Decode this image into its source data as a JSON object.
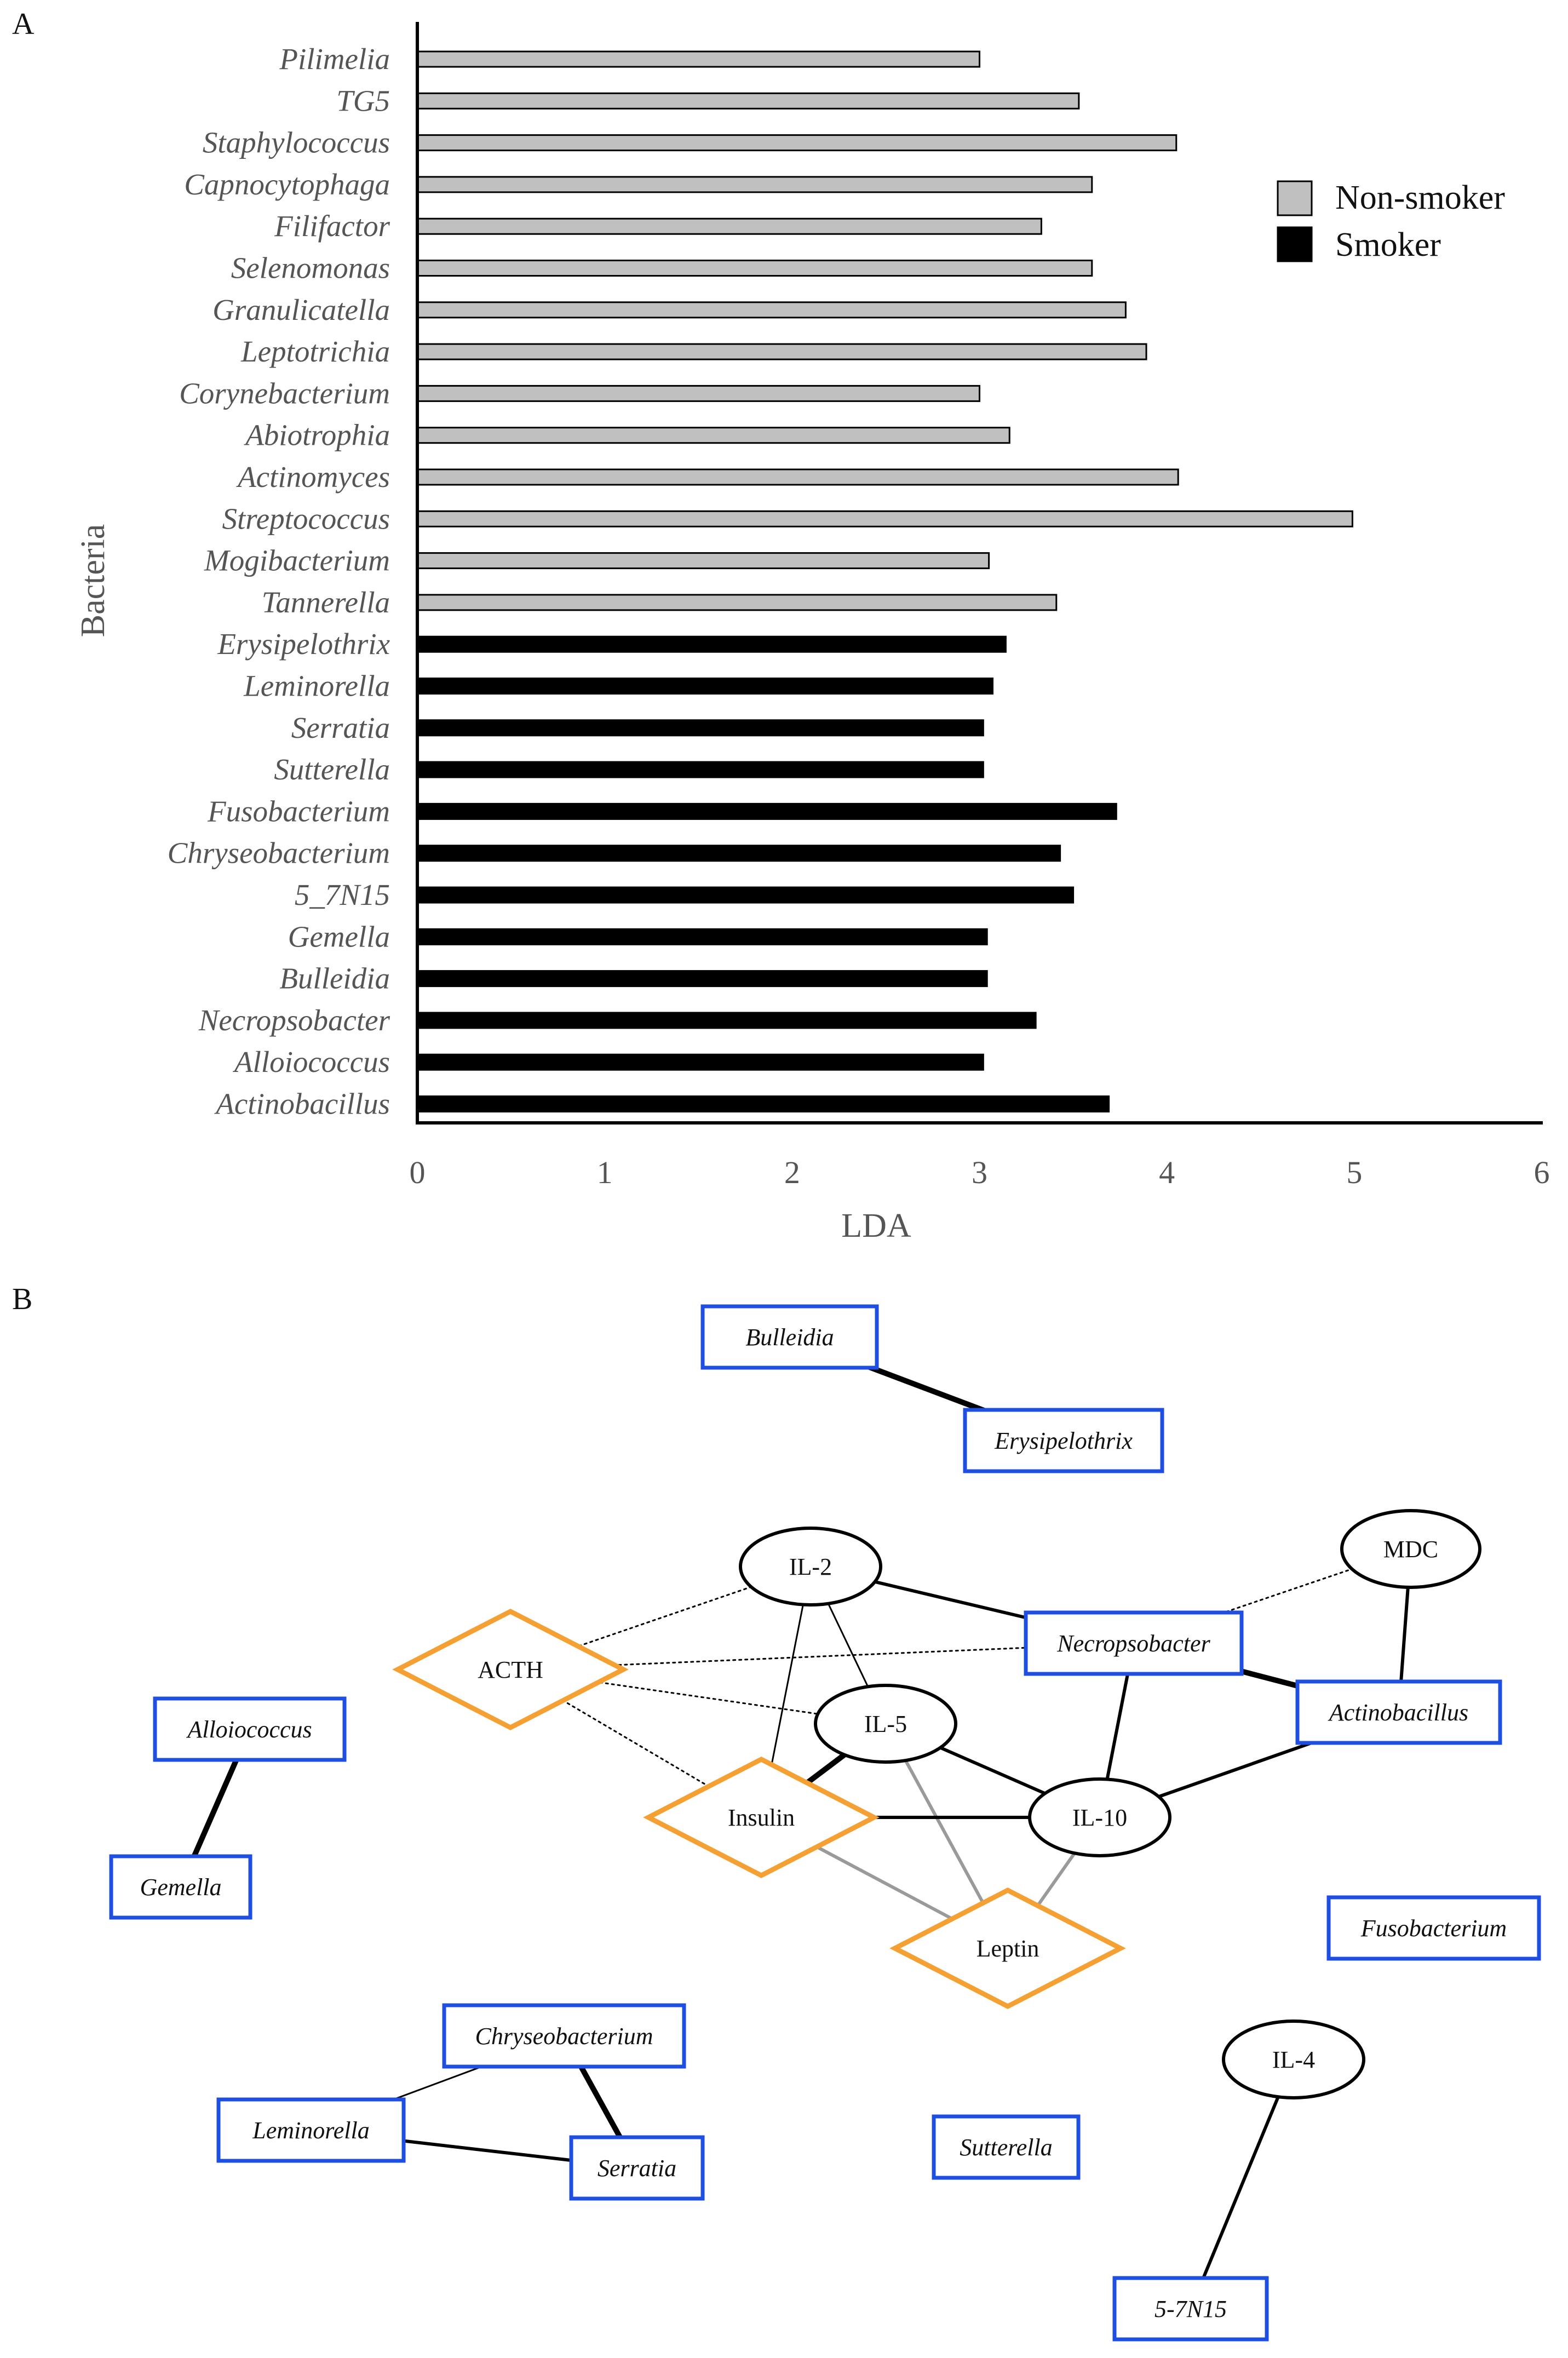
{
  "panel_a_label": "A",
  "panel_b_label": "B",
  "chart_data": [
    {
      "type": "bar",
      "orientation": "horizontal",
      "title": "",
      "xlabel": "LDA",
      "ylabel": "Bacteria",
      "xlim": [
        0,
        6
      ],
      "xticks": [
        "0",
        "1",
        "2",
        "3",
        "4",
        "5",
        "6"
      ],
      "legend": {
        "position": "top-right",
        "entries": [
          {
            "label": "Non-smoker",
            "color": "#c0c0c0"
          },
          {
            "label": "Smoker",
            "color": "#000000"
          }
        ]
      },
      "bars": [
        {
          "category": "Pilimelia",
          "value": 3.0,
          "group": "Non-smoker"
        },
        {
          "category": "TG5",
          "value": 3.53,
          "group": "Non-smoker"
        },
        {
          "category": "Staphylococcus",
          "value": 4.05,
          "group": "Non-smoker"
        },
        {
          "category": "Capnocytophaga",
          "value": 3.6,
          "group": "Non-smoker"
        },
        {
          "category": "Filifactor",
          "value": 3.33,
          "group": "Non-smoker"
        },
        {
          "category": "Selenomonas",
          "value": 3.6,
          "group": "Non-smoker"
        },
        {
          "category": "Granulicatella",
          "value": 3.78,
          "group": "Non-smoker"
        },
        {
          "category": "Leptotrichia",
          "value": 3.89,
          "group": "Non-smoker"
        },
        {
          "category": "Corynebacterium",
          "value": 3.0,
          "group": "Non-smoker"
        },
        {
          "category": "Abiotrophia",
          "value": 3.16,
          "group": "Non-smoker"
        },
        {
          "category": "Actinomyces",
          "value": 4.06,
          "group": "Non-smoker"
        },
        {
          "category": "Streptococcus",
          "value": 4.99,
          "group": "Non-smoker"
        },
        {
          "category": "Mogibacterium",
          "value": 3.05,
          "group": "Non-smoker"
        },
        {
          "category": "Tannerella",
          "value": 3.41,
          "group": "Non-smoker"
        },
        {
          "category": "Erysipelothrix",
          "value": 3.14,
          "group": "Smoker"
        },
        {
          "category": "Leminorella",
          "value": 3.07,
          "group": "Smoker"
        },
        {
          "category": "Serratia",
          "value": 3.02,
          "group": "Smoker"
        },
        {
          "category": "Sutterella",
          "value": 3.02,
          "group": "Smoker"
        },
        {
          "category": "Fusobacterium",
          "value": 3.73,
          "group": "Smoker"
        },
        {
          "category": "Chryseobacterium",
          "value": 3.43,
          "group": "Smoker"
        },
        {
          "category": "5_7N15",
          "value": 3.5,
          "group": "Smoker"
        },
        {
          "category": "Gemella",
          "value": 3.04,
          "group": "Smoker"
        },
        {
          "category": "Bulleidia",
          "value": 3.04,
          "group": "Smoker"
        },
        {
          "category": "Necropsobacter",
          "value": 3.3,
          "group": "Smoker"
        },
        {
          "category": "Alloiococcus",
          "value": 3.02,
          "group": "Smoker"
        },
        {
          "category": "Actinobacillus",
          "value": 3.69,
          "group": "Smoker"
        }
      ]
    },
    {
      "type": "network",
      "node_colors": {
        "bacteria": "#1f4fe0",
        "hormone": "#f5a033",
        "cytokine": "#000000"
      },
      "nodes": [
        {
          "id": "Bulleidia",
          "label": "Bulleidia",
          "kind": "bacteria"
        },
        {
          "id": "Erysipelothrix",
          "label": "Erysipelothrix",
          "kind": "bacteria"
        },
        {
          "id": "IL-2",
          "label": "IL-2",
          "kind": "cytokine"
        },
        {
          "id": "MDC",
          "label": "MDC",
          "kind": "cytokine"
        },
        {
          "id": "ACTH",
          "label": "ACTH",
          "kind": "hormone"
        },
        {
          "id": "Necropsobacter",
          "label": "Necropsobacter",
          "kind": "bacteria"
        },
        {
          "id": "Actinobacillus",
          "label": "Actinobacillus",
          "kind": "bacteria"
        },
        {
          "id": "Alloiococcus",
          "label": "Alloiococcus",
          "kind": "bacteria"
        },
        {
          "id": "IL-5",
          "label": "IL-5",
          "kind": "cytokine"
        },
        {
          "id": "Insulin",
          "label": "Insulin",
          "kind": "hormone"
        },
        {
          "id": "IL-10",
          "label": "IL-10",
          "kind": "cytokine"
        },
        {
          "id": "Gemella",
          "label": "Gemella",
          "kind": "bacteria"
        },
        {
          "id": "Leptin",
          "label": "Leptin",
          "kind": "hormone"
        },
        {
          "id": "Fusobacterium",
          "label": "Fusobacterium",
          "kind": "bacteria"
        },
        {
          "id": "Chryseobacterium",
          "label": "Chryseobacterium",
          "kind": "bacteria"
        },
        {
          "id": "IL-4",
          "label": "IL-4",
          "kind": "cytokine"
        },
        {
          "id": "Leminorella",
          "label": "Leminorella",
          "kind": "bacteria"
        },
        {
          "id": "Sutterella",
          "label": "Sutterella",
          "kind": "bacteria"
        },
        {
          "id": "Serratia",
          "label": "Serratia",
          "kind": "bacteria"
        },
        {
          "id": "5-7N15",
          "label": "5-7N15",
          "kind": "bacteria"
        }
      ],
      "edges": [
        {
          "source": "Bulleidia",
          "target": "Erysipelothrix",
          "style": "thick"
        },
        {
          "source": "ACTH",
          "target": "IL-2",
          "style": "dotted"
        },
        {
          "source": "ACTH",
          "target": "Necropsobacter",
          "style": "dotted"
        },
        {
          "source": "ACTH",
          "target": "IL-5",
          "style": "dotted"
        },
        {
          "source": "ACTH",
          "target": "Insulin",
          "style": "dotted"
        },
        {
          "source": "MDC",
          "target": "Necropsobacter",
          "style": "dotted"
        },
        {
          "source": "IL-2",
          "target": "Necropsobacter",
          "style": "solid"
        },
        {
          "source": "IL-2",
          "target": "IL-5",
          "style": "thin"
        },
        {
          "source": "IL-2",
          "target": "Insulin",
          "style": "thin"
        },
        {
          "source": "MDC",
          "target": "Actinobacillus",
          "style": "solid"
        },
        {
          "source": "Necropsobacter",
          "target": "Actinobacillus",
          "style": "thick"
        },
        {
          "source": "Necropsobacter",
          "target": "IL-10",
          "style": "solid"
        },
        {
          "source": "IL-5",
          "target": "IL-10",
          "style": "solid"
        },
        {
          "source": "IL-5",
          "target": "Insulin",
          "style": "thick"
        },
        {
          "source": "IL-5",
          "target": "Leptin",
          "style": "gray"
        },
        {
          "source": "Insulin",
          "target": "IL-10",
          "style": "solid"
        },
        {
          "source": "Insulin",
          "target": "Leptin",
          "style": "gray"
        },
        {
          "source": "IL-10",
          "target": "Leptin",
          "style": "gray"
        },
        {
          "source": "IL-10",
          "target": "Actinobacillus",
          "style": "solid"
        },
        {
          "source": "Alloiococcus",
          "target": "Gemella",
          "style": "thick"
        },
        {
          "source": "Leminorella",
          "target": "Chryseobacterium",
          "style": "thin"
        },
        {
          "source": "Leminorella",
          "target": "Serratia",
          "style": "solid"
        },
        {
          "source": "Chryseobacterium",
          "target": "Serratia",
          "style": "thick"
        },
        {
          "source": "IL-4",
          "target": "5-7N15",
          "style": "solid"
        }
      ]
    }
  ]
}
